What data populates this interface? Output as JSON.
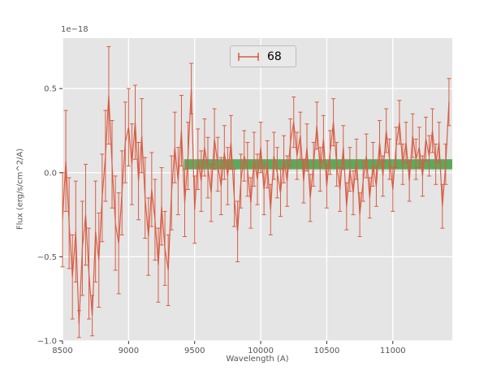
{
  "figure": {
    "offset_label": "1e−18",
    "colors": {
      "figure_background": "#ffffff",
      "axes_background": "#e5e5e5",
      "grid": "#ffffff",
      "tick_text": "#555555",
      "tick_mark": "#333333"
    }
  },
  "chart_data": {
    "type": "line",
    "errorbars": true,
    "title": "",
    "xlabel": "Wavelength (A)",
    "ylabel": "Flux (erg/s/cm^2/A)",
    "y_offset_factor": "1e-18",
    "xlim": [
      8500,
      11450
    ],
    "ylim": [
      -1.0,
      0.8
    ],
    "x_ticks": [
      8500,
      9000,
      9500,
      10000,
      10500,
      11000
    ],
    "x_tick_labels": [
      "8500",
      "9000",
      "9500",
      "10000",
      "10500",
      "11000"
    ],
    "y_ticks": [
      -1.0,
      -0.5,
      0.0,
      0.5
    ],
    "y_tick_labels": [
      "−1.0",
      "−0.5",
      "0.0",
      "0.5"
    ],
    "grid": true,
    "legend_position": "upper center",
    "band": {
      "x_start": 9420,
      "x_end": 11450,
      "y_low": 0.02,
      "y_high": 0.08,
      "color": "#008000",
      "opacity": 0.6
    },
    "series": [
      {
        "name": "68",
        "color": "#d95c43",
        "x": [
          8500,
          8525,
          8550,
          8575,
          8600,
          8625,
          8650,
          8675,
          8700,
          8725,
          8750,
          8775,
          8800,
          8825,
          8850,
          8875,
          8900,
          8925,
          8950,
          8975,
          9000,
          9025,
          9050,
          9075,
          9100,
          9125,
          9150,
          9175,
          9200,
          9225,
          9250,
          9275,
          9300,
          9325,
          9350,
          9375,
          9400,
          9425,
          9450,
          9475,
          9500,
          9525,
          9550,
          9575,
          9600,
          9625,
          9650,
          9675,
          9700,
          9725,
          9750,
          9775,
          9800,
          9825,
          9850,
          9875,
          9900,
          9925,
          9950,
          9975,
          10000,
          10025,
          10050,
          10075,
          10100,
          10125,
          10150,
          10175,
          10200,
          10225,
          10250,
          10275,
          10300,
          10325,
          10350,
          10375,
          10400,
          10425,
          10450,
          10475,
          10500,
          10525,
          10550,
          10575,
          10600,
          10625,
          10650,
          10675,
          10700,
          10725,
          10750,
          10775,
          10800,
          10825,
          10850,
          10875,
          10900,
          10925,
          10950,
          10975,
          11000,
          11025,
          11050,
          11075,
          11100,
          11125,
          11150,
          11175,
          11200,
          11225,
          11250,
          11275,
          11300,
          11325,
          11350,
          11375,
          11400,
          11425
        ],
        "y": [
          -0.28,
          0.07,
          -0.3,
          -0.62,
          -0.35,
          -0.9,
          -0.45,
          -0.25,
          -0.6,
          -0.85,
          -0.35,
          -0.52,
          -0.15,
          0.1,
          0.46,
          0.05,
          -0.3,
          -0.42,
          -0.12,
          0.18,
          0.27,
          0.05,
          0.3,
          -0.05,
          0.22,
          -0.15,
          -0.38,
          -0.1,
          -0.28,
          -0.55,
          -0.2,
          -0.45,
          -0.58,
          -0.12,
          0.15,
          -0.05,
          0.25,
          -0.18,
          0.1,
          0.5,
          -0.22,
          0.08,
          -0.05,
          0.15,
          0.03,
          -0.12,
          0.2,
          0.05,
          -0.08,
          0.12,
          -0.02,
          0.18,
          -0.15,
          -0.35,
          -0.05,
          0.1,
          0.02,
          -0.18,
          0.08,
          -0.04,
          0.15,
          -0.1,
          0.05,
          -0.22,
          0.1,
          0.0,
          -0.12,
          0.08,
          -0.05,
          0.18,
          0.3,
          0.1,
          0.22,
          -0.05,
          0.15,
          -0.15,
          0.05,
          0.28,
          0.02,
          0.2,
          -0.08,
          0.12,
          0.3,
          0.05,
          -0.1,
          0.15,
          -0.2,
          0.02,
          -0.12,
          0.08,
          -0.25,
          -0.05,
          0.1,
          -0.15,
          0.05,
          -0.08,
          0.18,
          -0.02,
          0.25,
          0.08,
          -0.1,
          0.15,
          0.3,
          0.05,
          0.18,
          -0.05,
          0.22,
          0.08,
          0.15,
          -0.02,
          0.2,
          0.1,
          0.25,
          0.05,
          0.18,
          -0.2,
          0.05,
          0.42
        ],
        "yerr": [
          0.28,
          0.3,
          0.27,
          0.25,
          0.3,
          0.08,
          0.28,
          0.3,
          0.27,
          0.12,
          0.3,
          0.28,
          0.26,
          0.27,
          0.29,
          0.26,
          0.28,
          0.3,
          0.25,
          0.24,
          0.23,
          0.24,
          0.22,
          0.23,
          0.22,
          0.24,
          0.23,
          0.22,
          0.24,
          0.22,
          0.23,
          0.22,
          0.21,
          0.22,
          0.21,
          0.2,
          0.21,
          0.2,
          0.2,
          0.15,
          0.2,
          0.18,
          0.18,
          0.17,
          0.18,
          0.17,
          0.18,
          0.16,
          0.17,
          0.16,
          0.17,
          0.16,
          0.17,
          0.18,
          0.16,
          0.15,
          0.16,
          0.15,
          0.16,
          0.15,
          0.15,
          0.15,
          0.14,
          0.15,
          0.14,
          0.15,
          0.14,
          0.14,
          0.15,
          0.14,
          0.15,
          0.14,
          0.14,
          0.13,
          0.14,
          0.14,
          0.13,
          0.14,
          0.13,
          0.14,
          0.13,
          0.13,
          0.14,
          0.13,
          0.13,
          0.13,
          0.14,
          0.13,
          0.13,
          0.12,
          0.13,
          0.12,
          0.13,
          0.12,
          0.13,
          0.12,
          0.13,
          0.12,
          0.13,
          0.12,
          0.13,
          0.12,
          0.13,
          0.12,
          0.12,
          0.12,
          0.13,
          0.12,
          0.12,
          0.12,
          0.13,
          0.12,
          0.13,
          0.12,
          0.12,
          0.13,
          0.12,
          0.14
        ]
      }
    ]
  }
}
